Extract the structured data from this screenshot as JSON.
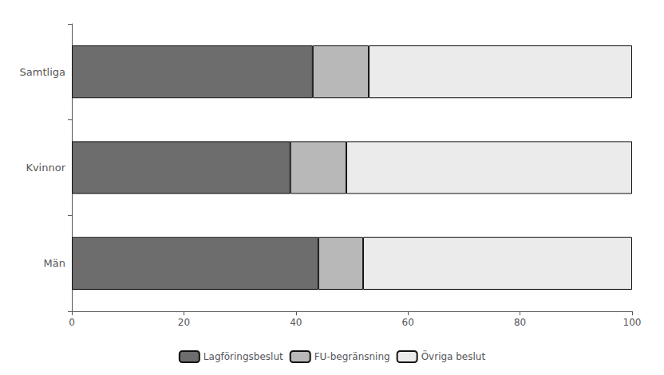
{
  "chart_data": {
    "type": "bar",
    "orientation": "horizontal",
    "stacked": true,
    "categories": [
      "Samtliga",
      "Kvinnor",
      "Män"
    ],
    "series": [
      {
        "name": "Lagföringsbeslut",
        "color": "#6d6d6d",
        "values": [
          43,
          39,
          44
        ]
      },
      {
        "name": "FU-begränsning",
        "color": "#b8b8b8",
        "values": [
          10,
          10,
          8
        ]
      },
      {
        "name": "Övriga beslut",
        "color": "#ebebeb",
        "values": [
          47,
          51,
          48
        ]
      }
    ],
    "xlim": [
      0,
      100
    ],
    "xticks": [
      0,
      20,
      40,
      60,
      80,
      100
    ],
    "grid": false,
    "legend": "bottom"
  }
}
